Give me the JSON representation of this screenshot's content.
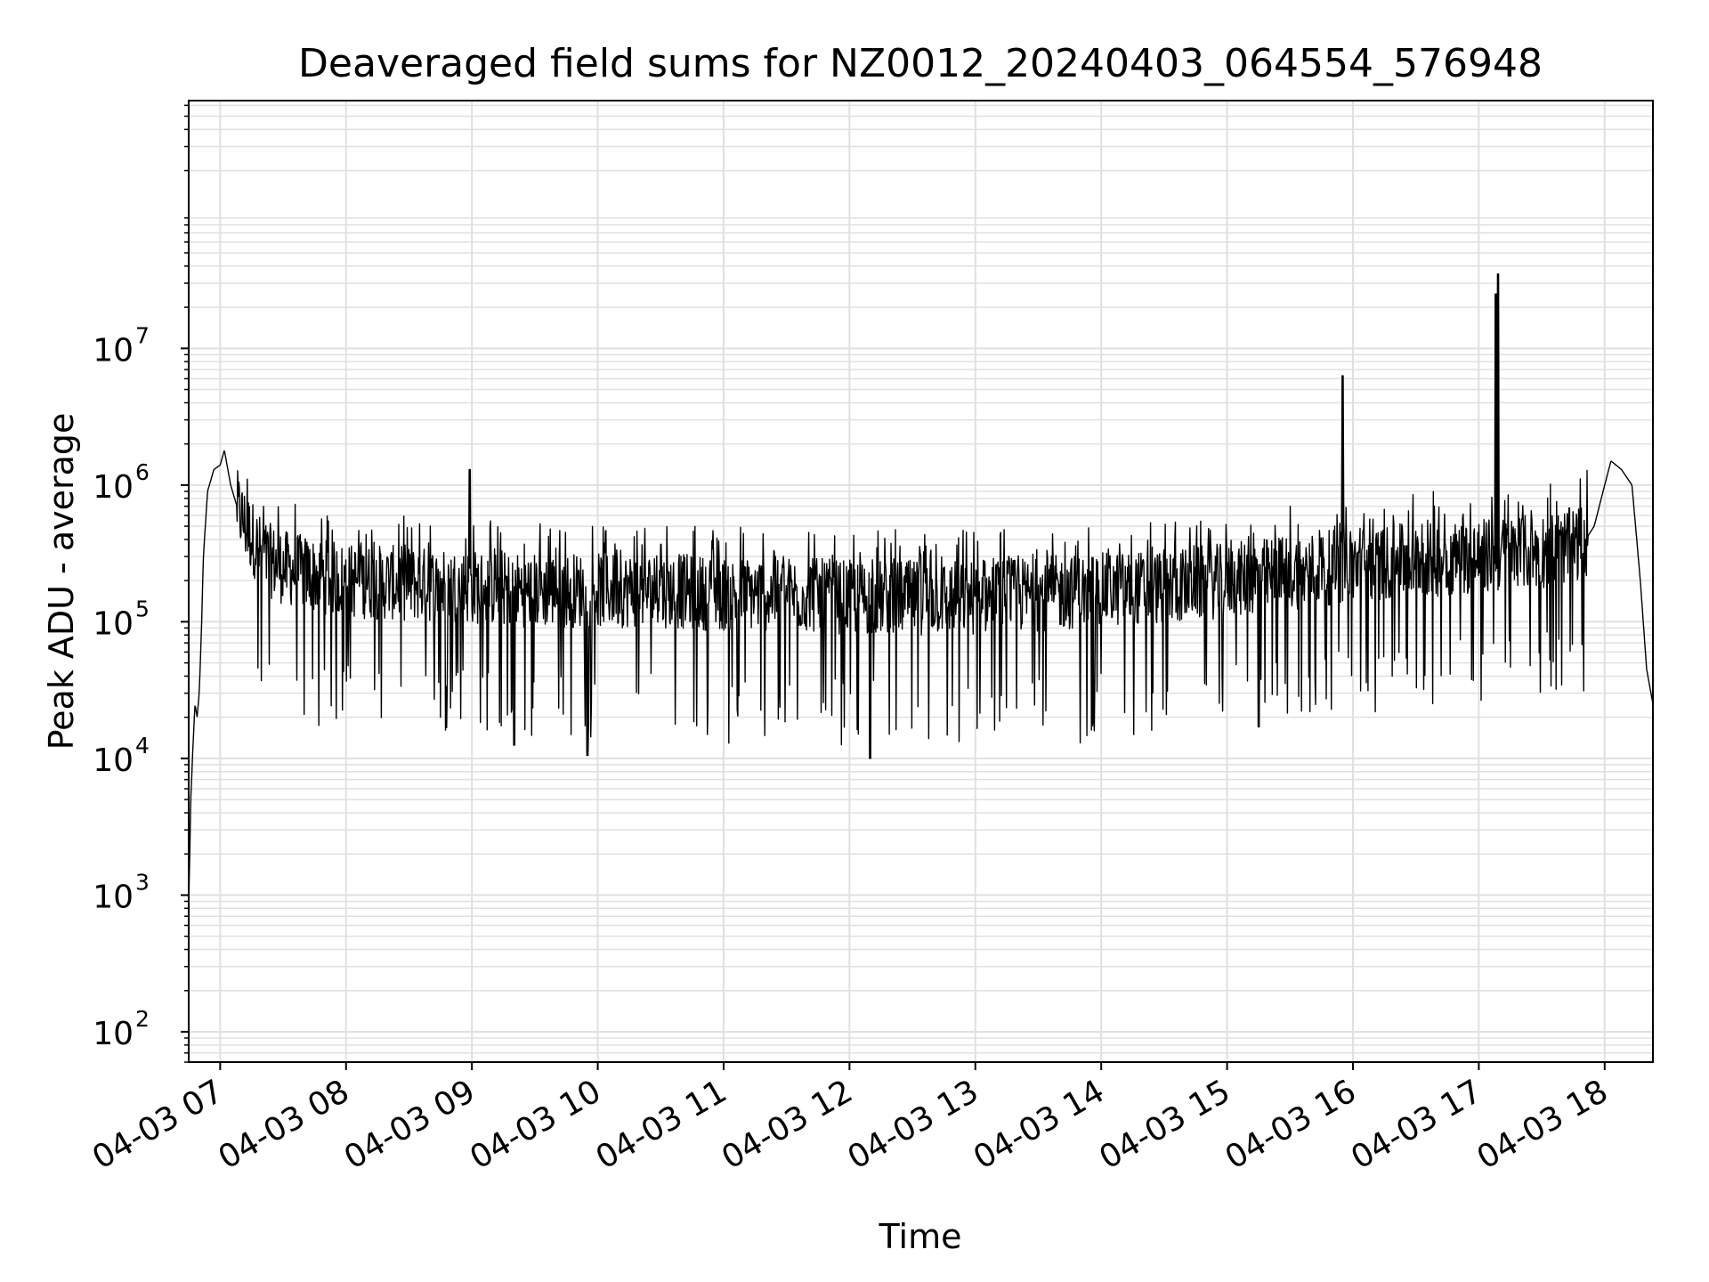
{
  "chart_data": {
    "type": "line",
    "title": "Deaveraged field sums for NZ0012_20240403_064554_576948",
    "xlabel": "Time",
    "ylabel": "Peak ADU - average",
    "yscale": "log",
    "ylim": [
      60,
      650000000
    ],
    "xlim": [
      "04-03 06:45",
      "04-03 18:23"
    ],
    "grid": true,
    "line_color": "#000000",
    "grid_color": "#e0e0e0",
    "x_ticks": [
      "04-03 07",
      "04-03 08",
      "04-03 09",
      "04-03 10",
      "04-03 11",
      "04-03 12",
      "04-03 13",
      "04-03 14",
      "04-03 15",
      "04-03 16",
      "04-03 17",
      "04-03 18"
    ],
    "y_ticks": [
      {
        "base": "10",
        "exp": "2",
        "value": 100
      },
      {
        "base": "10",
        "exp": "3",
        "value": 1000
      },
      {
        "base": "10",
        "exp": "4",
        "value": 10000
      },
      {
        "base": "10",
        "exp": "5",
        "value": 100000
      },
      {
        "base": "10",
        "exp": "6",
        "value": 1000000
      },
      {
        "base": "10",
        "exp": "7",
        "value": 10000000
      }
    ],
    "series": [
      {
        "points": [
          [
            "04-03 06:45",
            800
          ],
          [
            "04-03 06:46",
            5000
          ],
          [
            "04-03 06:47",
            12000
          ],
          [
            "04-03 06:48",
            25000
          ],
          [
            "04-03 06:49",
            20000
          ],
          [
            "04-03 06:50",
            30000
          ],
          [
            "04-03 06:51",
            80000
          ],
          [
            "04-03 06:52",
            300000
          ],
          [
            "04-03 06:54",
            900000
          ],
          [
            "04-03 06:57",
            1300000
          ],
          [
            "04-03 07:00",
            1400000
          ],
          [
            "04-03 07:02",
            1800000
          ],
          [
            "04-03 07:05",
            1000000
          ],
          [
            "04-03 07:08",
            700000
          ],
          [
            "04-03 07:12",
            500000
          ],
          [
            "04-03 07:16",
            400000
          ],
          [
            "04-03 07:20",
            300000
          ],
          [
            "04-03 07:30",
            250000
          ],
          [
            "04-03 07:45",
            220000
          ],
          [
            "04-03 08:00",
            200000
          ],
          [
            "04-03 08:30",
            190000
          ],
          [
            "04-03 09:00",
            180000
          ],
          [
            "04-03 09:30",
            170000
          ],
          [
            "04-03 10:00",
            170000
          ],
          [
            "04-03 10:30",
            170000
          ],
          [
            "04-03 11:00",
            160000
          ],
          [
            "04-03 11:30",
            160000
          ],
          [
            "04-03 12:00",
            150000
          ],
          [
            "04-03 12:30",
            150000
          ],
          [
            "04-03 13:00",
            150000
          ],
          [
            "04-03 13:30",
            160000
          ],
          [
            "04-03 14:00",
            170000
          ],
          [
            "04-03 14:30",
            180000
          ],
          [
            "04-03 15:00",
            200000
          ],
          [
            "04-03 15:30",
            230000
          ],
          [
            "04-03 16:00",
            260000
          ],
          [
            "04-03 16:30",
            280000
          ],
          [
            "04-03 17:00",
            300000
          ],
          [
            "04-03 17:30",
            330000
          ],
          [
            "04-03 17:50",
            380000
          ],
          [
            "04-03 17:55",
            500000
          ],
          [
            "04-03 18:00",
            1000000
          ],
          [
            "04-03 18:03",
            1500000
          ],
          [
            "04-03 18:08",
            1300000
          ],
          [
            "04-03 18:13",
            1000000
          ],
          [
            "04-03 18:17",
            200000
          ],
          [
            "04-03 18:20",
            45000
          ],
          [
            "04-03 18:23",
            25000
          ]
        ]
      }
    ],
    "spikes": [
      {
        "x": "04-03 08:59",
        "y": 1300000
      },
      {
        "x": "04-03 15:55",
        "y": 6300000
      },
      {
        "x": "04-03 17:08",
        "y": 25000000
      },
      {
        "x": "04-03 17:09",
        "y": 35000000
      }
    ],
    "dips": [
      {
        "x": "04-03 07:40",
        "y": 21000
      },
      {
        "x": "04-03 08:45",
        "y": 20000
      },
      {
        "x": "04-03 09:20",
        "y": 12500
      },
      {
        "x": "04-03 09:55",
        "y": 10500
      },
      {
        "x": "04-03 12:10",
        "y": 10000
      },
      {
        "x": "04-03 13:50",
        "y": 13000
      },
      {
        "x": "04-03 15:15",
        "y": 17000
      }
    ]
  }
}
